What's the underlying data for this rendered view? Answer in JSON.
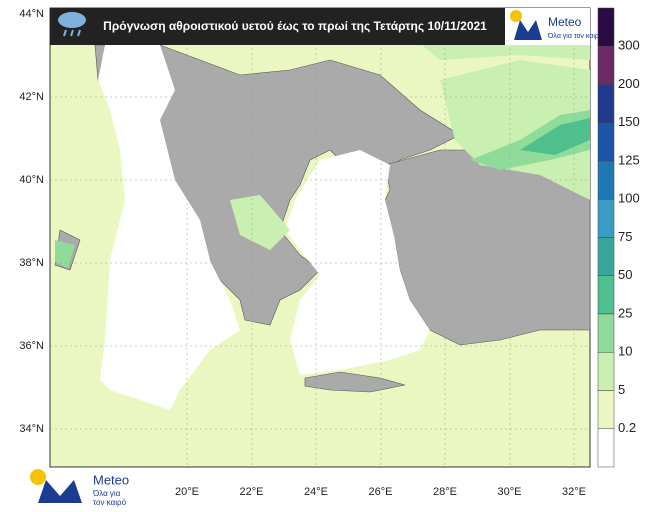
{
  "header": {
    "title": "Πρόγνωση αθροιστικού υετού έως το πρωί της Τετάρτης 10/11/2021",
    "logo_name": "Meteo",
    "logo_slogan": "Όλα για τον καιρό"
  },
  "lat_labels": [
    "44°N",
    "42°N",
    "40°N",
    "38°N",
    "36°N",
    "34°N"
  ],
  "lon_labels": [
    "20°E",
    "22°E",
    "24°E",
    "26°E",
    "28°E",
    "30°E",
    "32°E"
  ],
  "legend": {
    "labels": [
      "300",
      "200",
      "150",
      "125",
      "100",
      "75",
      "50",
      "25",
      "10",
      "5",
      "0.2"
    ]
  },
  "footer": {
    "logo_name": "Meteo",
    "logo_slogan_line1": "Όλα για",
    "logo_slogan_line2": "τον καιρό"
  }
}
